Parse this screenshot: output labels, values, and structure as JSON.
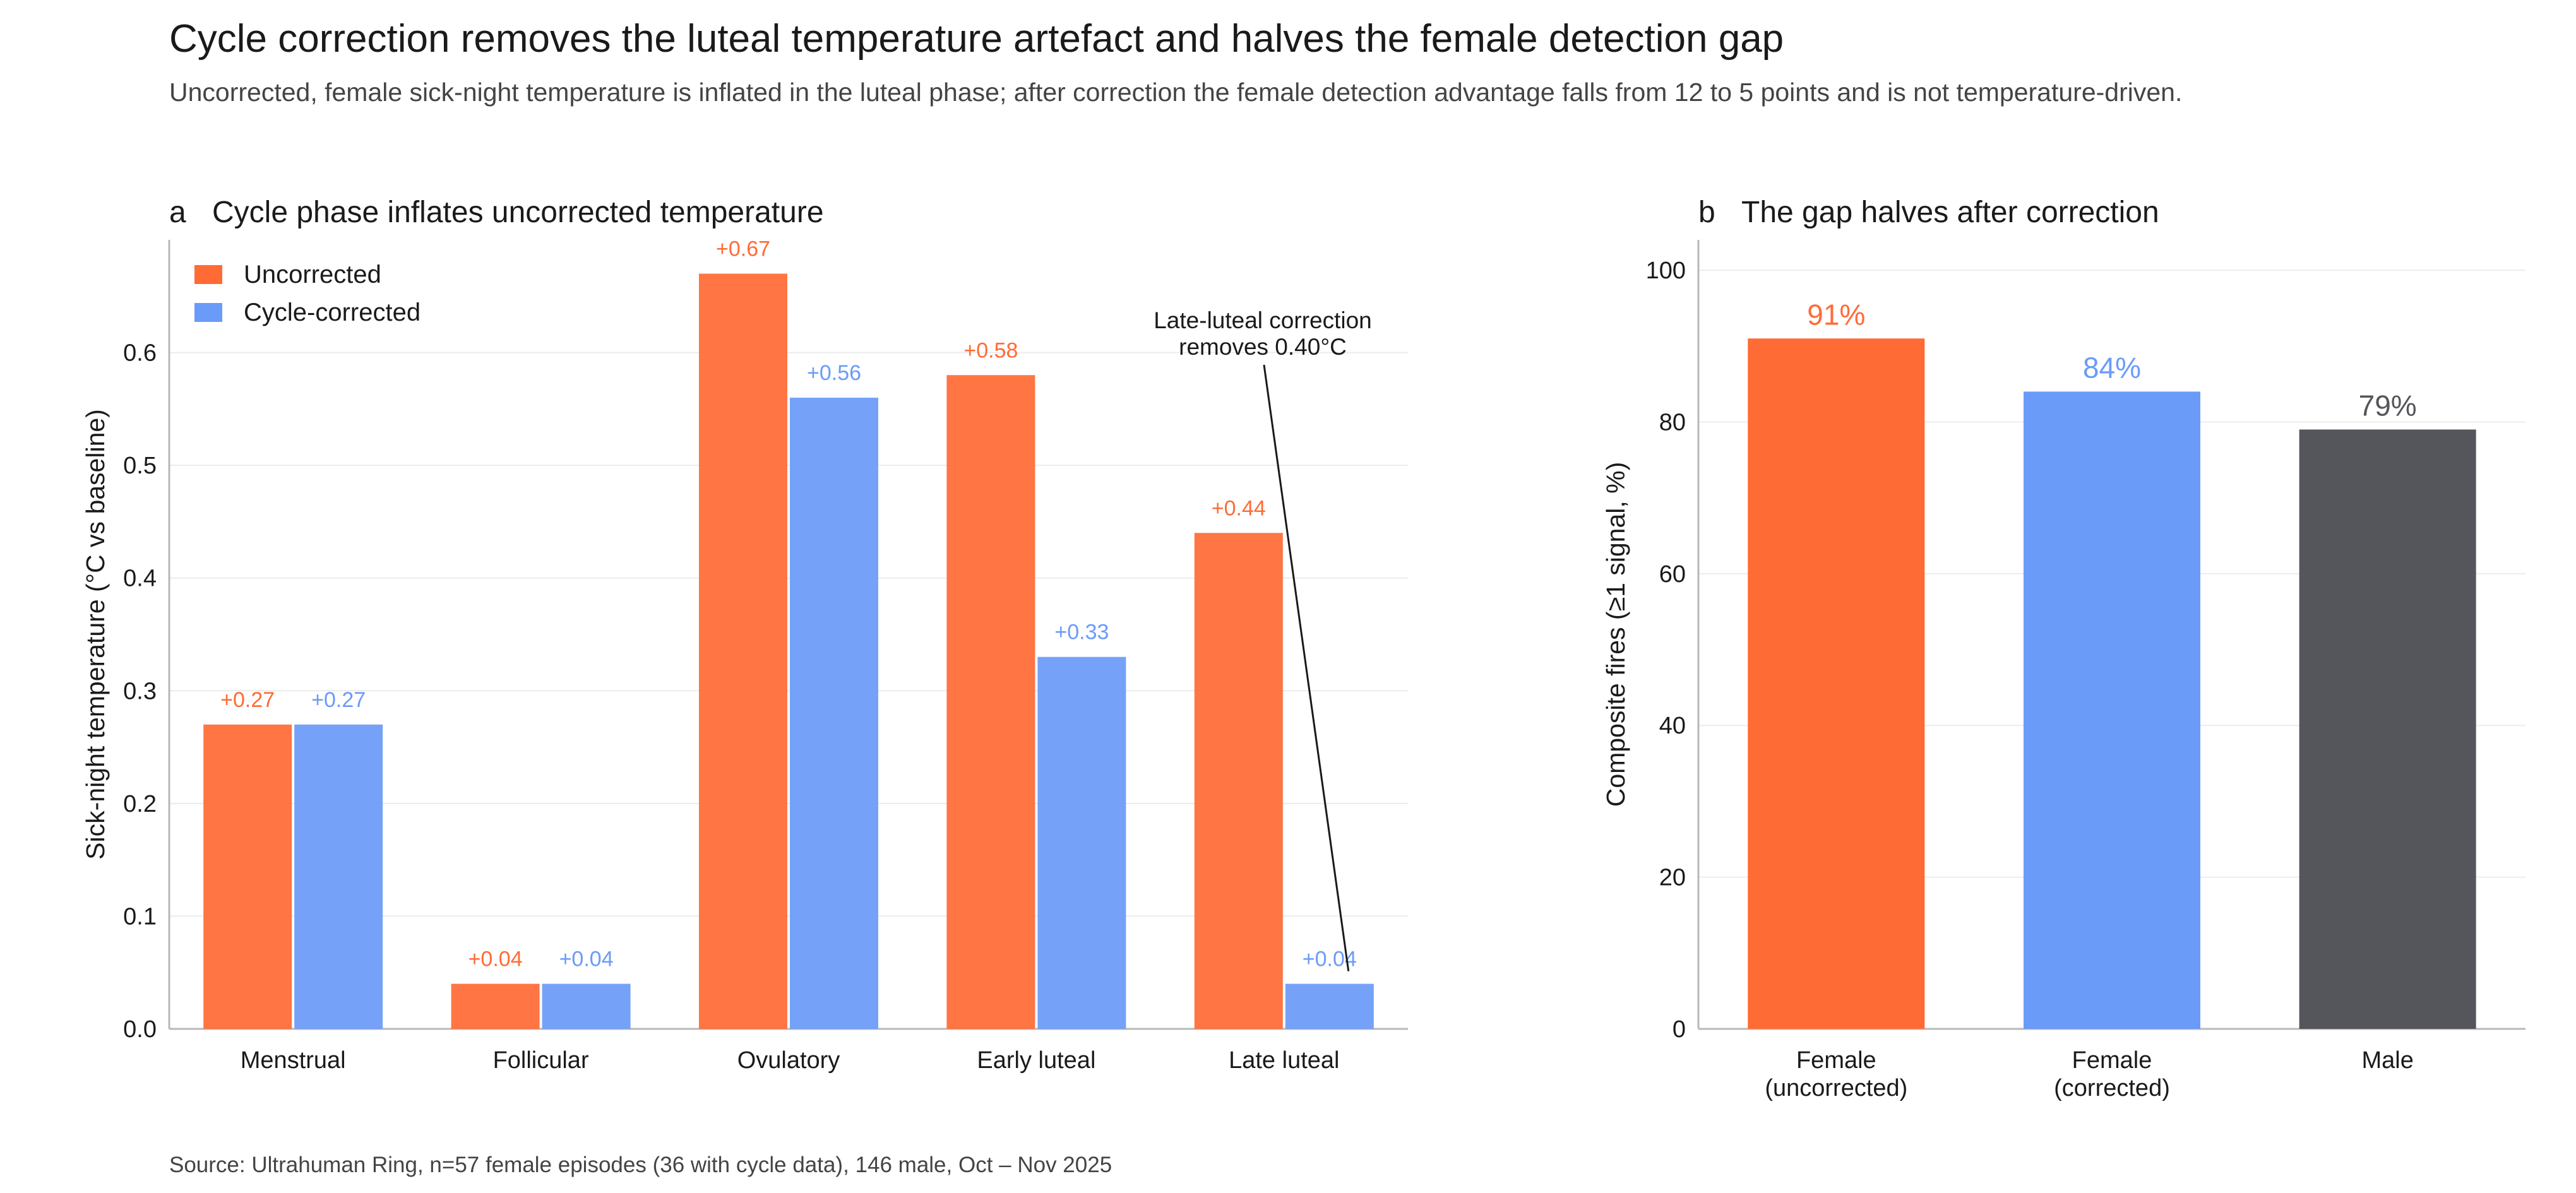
{
  "header": {
    "title": "Cycle correction removes the luteal temperature artefact and halves the female detection gap",
    "subtitle": "Uncorrected, female sick-night temperature is inflated in the luteal phase; after correction the female detection advantage falls from 12 to 5 points and is not temperature-driven."
  },
  "footer": {
    "source": "Source: Ultrahuman Ring, n=57 female episodes (36 with cycle data), 146 male, Oct – Nov 2025"
  },
  "colors": {
    "uncorrected": "#FF6B35",
    "corrected": "#6B9BF8",
    "male": "#55565B",
    "text": "#1a1a1a",
    "muted": "#444444",
    "grid": "#ECECEC",
    "axis": "#B8B8B8"
  },
  "chart_data": [
    {
      "panel_letter": "a",
      "type": "bar",
      "title": "Cycle phase inflates uncorrected temperature",
      "xlabel": "",
      "ylabel": "Sick-night temperature (°C vs baseline)",
      "categories": [
        "Menstrual",
        "Follicular",
        "Ovulatory",
        "Early luteal",
        "Late luteal"
      ],
      "series": [
        {
          "name": "Uncorrected",
          "values": [
            0.27,
            0.04,
            0.67,
            0.58,
            0.44
          ],
          "labels": [
            "+0.27",
            "+0.04",
            "+0.67",
            "+0.58",
            "+0.44"
          ],
          "color": "#FF6B35"
        },
        {
          "name": "Cycle-corrected",
          "values": [
            0.27,
            0.04,
            0.56,
            0.33,
            0.04
          ],
          "labels": [
            "+0.27",
            "+0.04",
            "+0.56",
            "+0.33",
            "+0.04"
          ],
          "color": "#6B9BF8"
        }
      ],
      "ylim": [
        0,
        0.7
      ],
      "yticks": [
        "0.0",
        "0.1",
        "0.2",
        "0.3",
        "0.4",
        "0.5",
        "0.6"
      ],
      "grid": true,
      "legend": "top-left",
      "annotation": {
        "lines": [
          "Late-luteal correction",
          "removes 0.40°C"
        ],
        "target_category": "Late luteal",
        "target_series": 1
      }
    },
    {
      "panel_letter": "b",
      "type": "bar",
      "title": "The gap halves after correction",
      "xlabel": "",
      "ylabel": "Composite fires (≥1 signal, %)",
      "categories": [
        [
          "Female",
          "(uncorrected)"
        ],
        [
          "Female",
          "(corrected)"
        ],
        [
          "Male"
        ]
      ],
      "values": [
        91,
        84,
        79
      ],
      "labels": [
        "91%",
        "84%",
        "79%"
      ],
      "colors": [
        "#FF6B35",
        "#6B9BF8",
        "#55565B"
      ],
      "ylim": [
        0,
        104
      ],
      "yticks": [
        "0",
        "20",
        "40",
        "60",
        "80",
        "100"
      ],
      "grid": true
    }
  ]
}
